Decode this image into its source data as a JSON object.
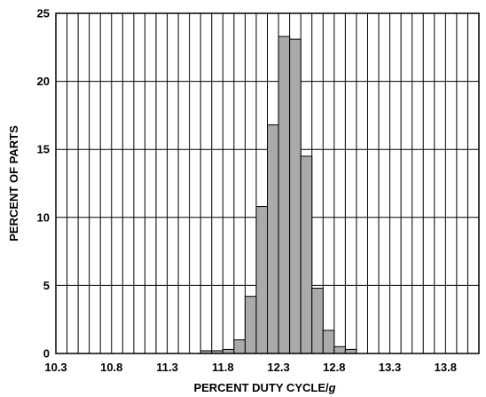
{
  "chart_data": {
    "type": "bar",
    "title": "",
    "xlabel": "PERCENT DUTY CYCLE/",
    "xlabel_italic_suffix": "g",
    "ylabel": "PERCENT OF PARTS",
    "xlim": [
      10.3,
      14.1
    ],
    "ylim": [
      0,
      25
    ],
    "x_ticks": [
      "10.3",
      "10.8",
      "11.3",
      "11.8",
      "12.3",
      "12.8",
      "13.3",
      "13.8"
    ],
    "y_ticks": [
      "0",
      "5",
      "10",
      "15",
      "20",
      "25"
    ],
    "grid": true,
    "bin_width": 0.1,
    "bar_color": "#aaaaaa",
    "bins": [
      {
        "start": 11.6,
        "end": 11.7,
        "value": 0.2
      },
      {
        "start": 11.7,
        "end": 11.8,
        "value": 0.2
      },
      {
        "start": 11.8,
        "end": 11.9,
        "value": 0.3
      },
      {
        "start": 11.9,
        "end": 12.0,
        "value": 1.0
      },
      {
        "start": 12.0,
        "end": 12.1,
        "value": 4.2
      },
      {
        "start": 12.1,
        "end": 12.2,
        "value": 10.8
      },
      {
        "start": 12.2,
        "end": 12.3,
        "value": 16.8
      },
      {
        "start": 12.3,
        "end": 12.4,
        "value": 23.3
      },
      {
        "start": 12.4,
        "end": 12.5,
        "value": 23.1
      },
      {
        "start": 12.5,
        "end": 12.6,
        "value": 14.5
      },
      {
        "start": 12.6,
        "end": 12.7,
        "value": 4.8
      },
      {
        "start": 12.7,
        "end": 12.8,
        "value": 1.7
      },
      {
        "start": 12.8,
        "end": 12.9,
        "value": 0.5
      },
      {
        "start": 12.9,
        "end": 13.0,
        "value": 0.3
      }
    ]
  }
}
